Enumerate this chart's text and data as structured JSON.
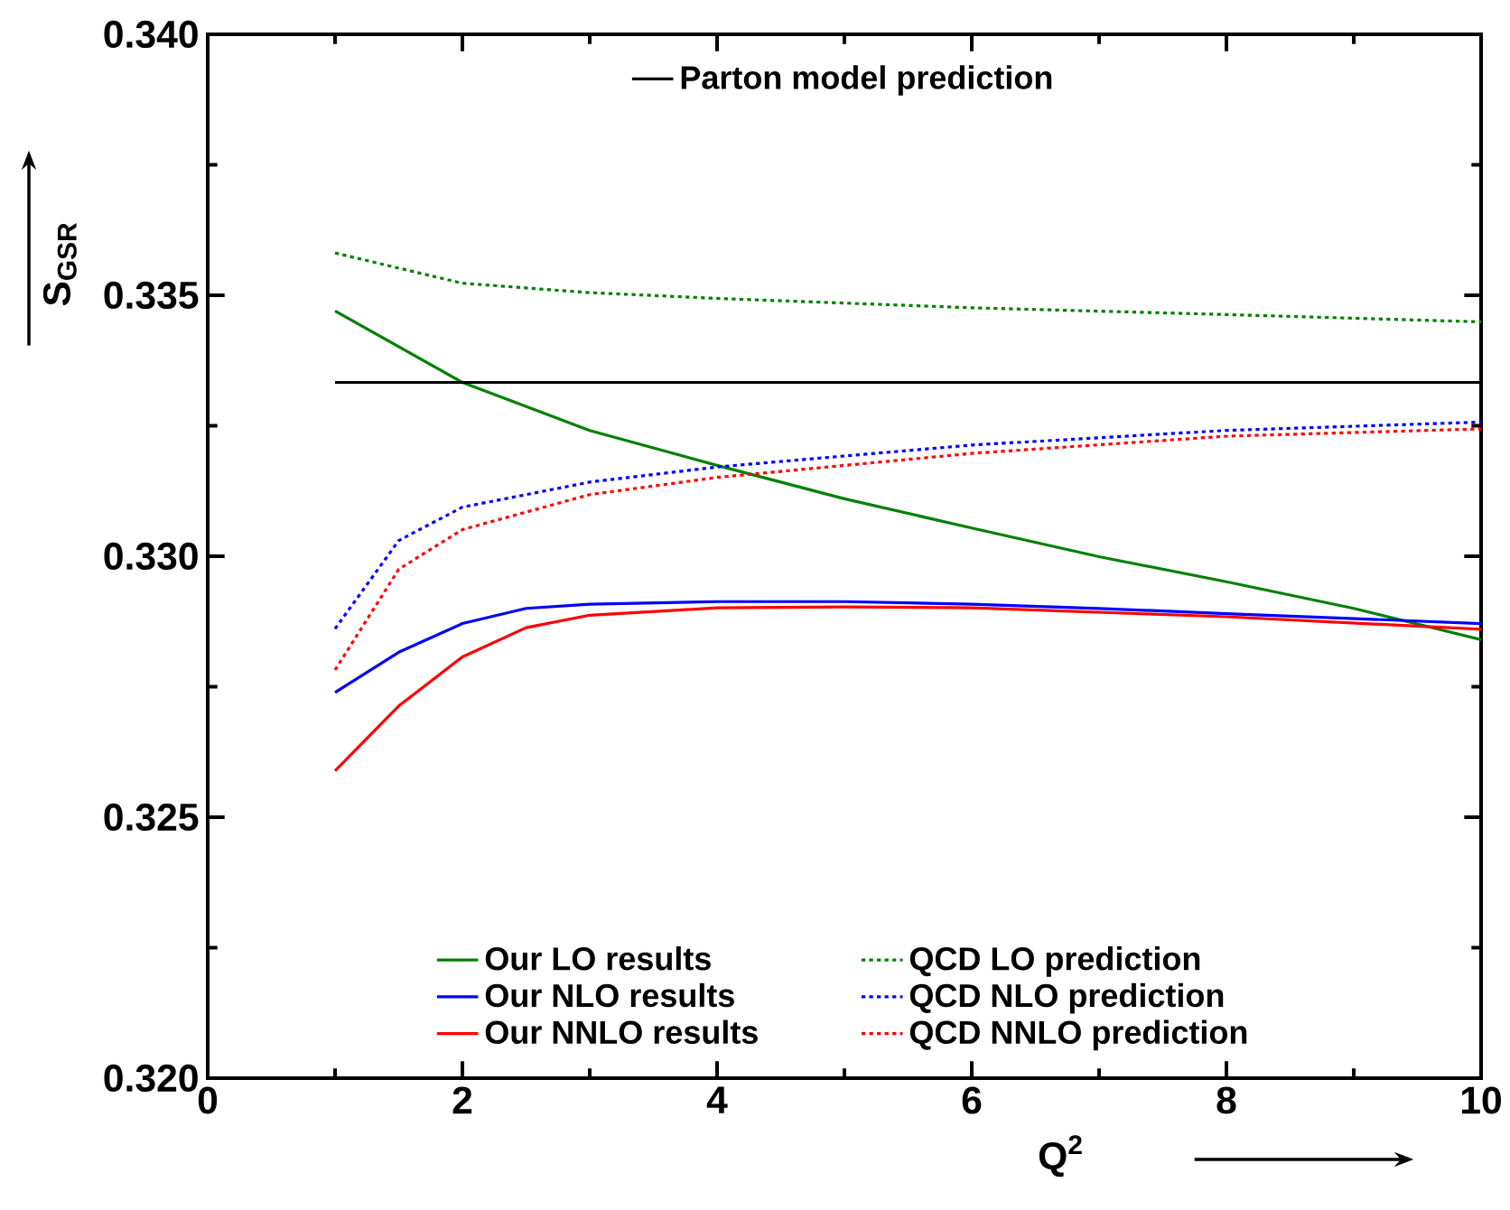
{
  "chart_data": {
    "type": "line",
    "xlabel": "Q$^{2}$",
    "ylabel": "S$_{GSR}$",
    "xlim": [
      0,
      10
    ],
    "ylim": [
      0.32,
      0.34
    ],
    "xticks": [
      0,
      2,
      4,
      6,
      8,
      10
    ],
    "yticks": [
      {
        "value": 0.32,
        "label": "0.320"
      },
      {
        "value": 0.325,
        "label": "0.325"
      },
      {
        "value": 0.33,
        "label": "0.330"
      },
      {
        "value": 0.335,
        "label": "0.335"
      },
      {
        "value": 0.34,
        "label": "0.340"
      }
    ],
    "grid": false,
    "legend": "bottom",
    "marker": "none",
    "series": [
      {
        "name": "Our LO results",
        "color": "#008000",
        "line_style": "solid",
        "x": [
          1,
          2,
          3,
          4,
          5,
          6,
          7,
          8,
          9,
          10
        ],
        "values": [
          0.3347,
          0.33333,
          0.33241,
          0.33174,
          0.3311,
          0.33054,
          0.32999,
          0.32951,
          0.329,
          0.3284
        ]
      },
      {
        "name": "Our NLO results",
        "color": "#0000ff",
        "line_style": "solid",
        "x": [
          1,
          1.5,
          2,
          2.5,
          3,
          4,
          5,
          6,
          7,
          8,
          10
        ],
        "values": [
          0.32739,
          0.32816,
          0.32871,
          0.329,
          0.32908,
          0.32913,
          0.32913,
          0.32908,
          0.329,
          0.3289,
          0.32871
        ]
      },
      {
        "name": "Our NNLO results",
        "color": "#ff0000",
        "line_style": "solid",
        "x": [
          1,
          1.5,
          2,
          2.5,
          3,
          4,
          5,
          6,
          8,
          10
        ],
        "values": [
          0.32589,
          0.32713,
          0.32807,
          0.32863,
          0.32887,
          0.32901,
          0.32903,
          0.32901,
          0.32884,
          0.3286
        ]
      },
      {
        "name": "QCD LO prediction",
        "color": "#008000",
        "line_style": "dotted",
        "x": [
          1,
          2,
          3,
          4,
          6,
          8,
          10
        ],
        "values": [
          0.33581,
          0.33523,
          0.33505,
          0.33494,
          0.33476,
          0.33463,
          0.33449
        ]
      },
      {
        "name": "QCD NLO prediction",
        "color": "#0000ff",
        "line_style": "dotted",
        "x": [
          1,
          1.5,
          2,
          3,
          4,
          6,
          8,
          10
        ],
        "values": [
          0.32861,
          0.3303,
          0.33094,
          0.33142,
          0.33171,
          0.33213,
          0.33241,
          0.33257
        ]
      },
      {
        "name": "QCD NNLO prediction",
        "color": "#ff0000",
        "line_style": "dotted",
        "x": [
          1,
          1.5,
          2,
          3,
          4,
          6,
          8,
          10
        ],
        "values": [
          0.32782,
          0.32975,
          0.33051,
          0.33118,
          0.33151,
          0.33197,
          0.3323,
          0.33244
        ]
      },
      {
        "name": "Parton model prediction",
        "color": "#000000",
        "line_style": "solid",
        "x": [
          1,
          10
        ],
        "values": [
          0.33333,
          0.33333
        ]
      }
    ]
  }
}
